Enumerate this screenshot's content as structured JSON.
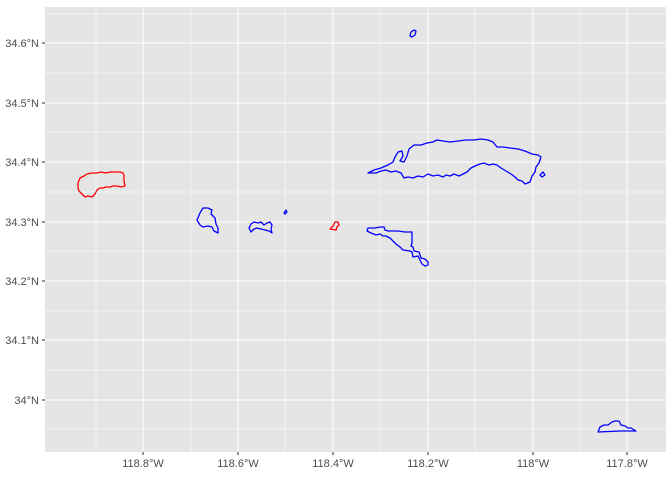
{
  "map": {
    "x_ticks": [
      "118.8°W",
      "118.6°W",
      "118.4°W",
      "118.2°W",
      "118°W",
      "117.8°W"
    ],
    "y_ticks": [
      "34°N",
      "34.1°N",
      "34.2°N",
      "34.3°N",
      "34.4°N",
      "34.5°N",
      "34.6°N"
    ],
    "colors": {
      "panel_background": "#e5e5e5",
      "grid": "#ffffff",
      "tick_text": "#4d4d4d",
      "red_group": "#ff0000",
      "blue_group": "#0000ff"
    }
  }
}
